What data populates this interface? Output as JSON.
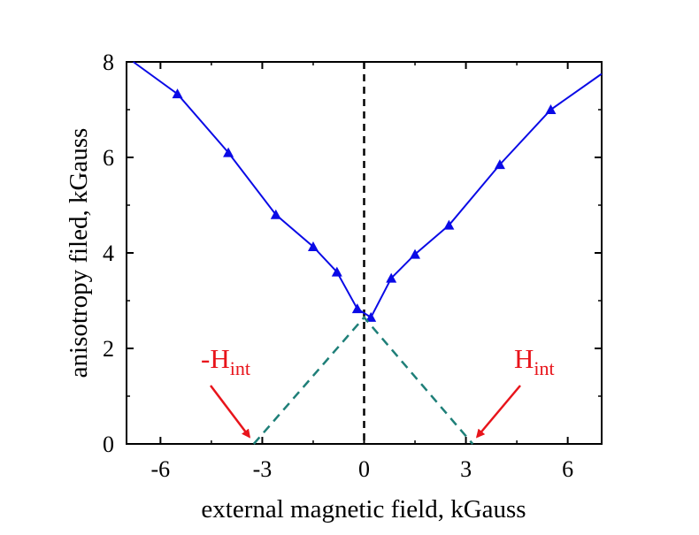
{
  "chart_data": {
    "type": "line",
    "title": "",
    "xlabel": "external magnetic field, kGauss",
    "ylabel": "anisotropy filed, kGauss",
    "xlim": [
      -7,
      7
    ],
    "ylim": [
      0,
      8
    ],
    "xticks": [
      -6,
      -3,
      0,
      3,
      6
    ],
    "xtick_labels": [
      "-6",
      "-3",
      "0",
      "3",
      "6"
    ],
    "yticks": [
      0,
      2,
      4,
      6,
      8
    ],
    "ytick_labels": [
      "0",
      "2",
      "4",
      "6",
      "8"
    ],
    "grid": false,
    "series": [
      {
        "style": "solid line with triangle markers",
        "color": "#0a0ae6",
        "x": [
          -6.8,
          -5.5,
          -4.0,
          -2.6,
          -1.5,
          -0.8,
          -0.2,
          0.2,
          0.8,
          1.5,
          2.5,
          4.0,
          5.5,
          7.0
        ],
        "y": [
          8.0,
          7.33,
          6.1,
          4.8,
          4.13,
          3.6,
          2.83,
          2.65,
          3.47,
          3.97,
          4.58,
          5.85,
          7.0,
          7.75
        ],
        "markers_at": [
          1,
          2,
          3,
          4,
          5,
          6,
          7,
          8,
          9,
          10,
          11,
          12
        ]
      },
      {
        "style": "dashed line",
        "color": "#1e7f78",
        "x": [
          -3.25,
          0.0,
          3.2
        ],
        "y": [
          0.0,
          2.65,
          0.0
        ]
      }
    ],
    "reference_lines": [
      {
        "orientation": "vertical",
        "x": 0,
        "style": "dashed",
        "color": "#000000"
      }
    ],
    "annotations": [
      {
        "text_main": "-H",
        "text_sub": "int",
        "arrow_to": [
          -3.25,
          0
        ],
        "color": "#e8141b"
      },
      {
        "text_main": "H",
        "text_sub": "int",
        "arrow_to": [
          3.2,
          0
        ],
        "color": "#e8141b"
      }
    ]
  }
}
